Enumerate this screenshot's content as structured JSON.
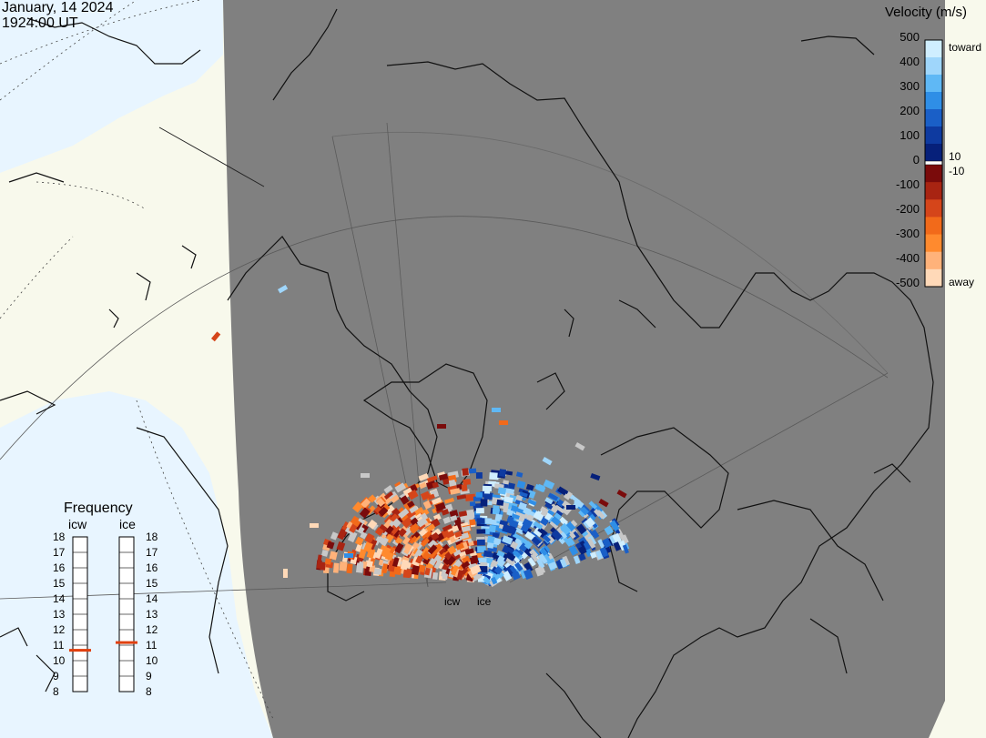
{
  "header": {
    "date": "January, 14 2024",
    "time": "1924:00 UT"
  },
  "colorbar": {
    "title": "Velocity (m/s)",
    "ticks": [
      "500",
      "400",
      "300",
      "200",
      "100",
      "0",
      "-100",
      "-200",
      "-300",
      "-400",
      "-500"
    ],
    "threshold_pos": "10",
    "threshold_neg": "-10",
    "toward_label": "toward",
    "away_label": "away",
    "colors_toward": [
      "#cfeeff",
      "#9fd6fb",
      "#5fb8f5",
      "#2f8ee6",
      "#1a5fc7",
      "#0e3aa0",
      "#06207a"
    ],
    "colors_away": [
      "#ffd9b8",
      "#ffb27a",
      "#ff8a2e",
      "#f26a1a",
      "#d5451a",
      "#a82412",
      "#7a0b0b"
    ]
  },
  "frequency": {
    "title": "Frequency",
    "radars": [
      {
        "name": "icw",
        "value_mhz": 10.7
      },
      {
        "name": "ice",
        "value_mhz": 11.2
      }
    ],
    "scale": [
      "18",
      "17",
      "16",
      "15",
      "14",
      "13",
      "12",
      "11",
      "10",
      "9",
      "8"
    ],
    "indicator_color": "#e0400f"
  },
  "radar_sites": [
    "icw",
    "ice"
  ],
  "colors": {
    "night": "#808080",
    "land": "#f8f9ec",
    "ocean": "#e8f5ff",
    "ground_scatter": "#c8c8c8"
  }
}
